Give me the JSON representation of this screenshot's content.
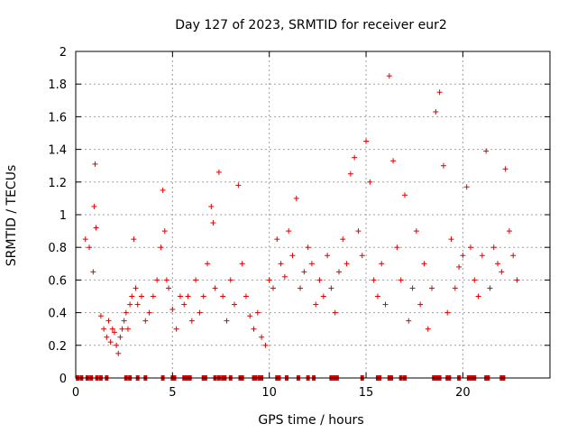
{
  "chart_data": {
    "type": "scatter",
    "title": "Day 127 of 2023, SRMTID for receiver eur2",
    "xlabel": "GPS time / hours",
    "ylabel": "SRMTID / TECUs",
    "xlim": [
      0,
      24.5
    ],
    "ylim": [
      0,
      2
    ],
    "grid": true,
    "x_ticks": [
      0,
      5,
      10,
      15,
      20
    ],
    "x_tick_labels": [
      "0",
      "5",
      "10",
      "15",
      "20"
    ],
    "y_ticks": [
      0,
      0.2,
      0.4,
      0.6,
      0.8,
      1,
      1.2,
      1.4,
      1.6,
      1.8,
      2
    ],
    "y_tick_labels": [
      "0",
      "0.2",
      "0.4",
      "0.6",
      "0.8",
      "1",
      "1.2",
      "1.4",
      "1.6",
      "1.8",
      "2"
    ],
    "marker": "+",
    "color": "#e00000",
    "series": [
      {
        "name": "SRMTID",
        "x": [
          0.5,
          0.7,
          0.9,
          0.95,
          1.0,
          1.05,
          1.3,
          1.45,
          1.6,
          1.7,
          1.8,
          1.9,
          2.0,
          2.1,
          2.2,
          2.3,
          2.4,
          2.5,
          2.6,
          2.7,
          2.8,
          2.9,
          3.0,
          3.1,
          3.2,
          3.4,
          3.6,
          3.8,
          4.0,
          4.2,
          4.4,
          4.5,
          4.6,
          4.7,
          4.8,
          5.0,
          5.2,
          5.4,
          5.6,
          5.8,
          6.0,
          6.2,
          6.4,
          6.6,
          6.8,
          7.0,
          7.1,
          7.2,
          7.4,
          7.6,
          7.8,
          8.0,
          8.2,
          8.4,
          8.6,
          8.8,
          9.0,
          9.2,
          9.4,
          9.6,
          9.8,
          10.0,
          10.2,
          10.4,
          10.6,
          10.8,
          11.0,
          11.2,
          11.4,
          11.6,
          11.8,
          12.0,
          12.2,
          12.4,
          12.6,
          12.8,
          13.0,
          13.2,
          13.4,
          13.6,
          13.8,
          14.0,
          14.2,
          14.4,
          14.6,
          14.8,
          15.0,
          15.2,
          15.4,
          15.6,
          15.8,
          16.0,
          16.2,
          16.4,
          16.6,
          16.8,
          17.0,
          17.2,
          17.4,
          17.6,
          17.8,
          18.0,
          18.2,
          18.4,
          18.6,
          18.8,
          19.0,
          19.2,
          19.4,
          19.6,
          19.8,
          20.0,
          20.2,
          20.4,
          20.6,
          20.8,
          21.0,
          21.2,
          21.4,
          21.6,
          21.8,
          22.0,
          22.2,
          22.4,
          22.6,
          22.8
        ],
        "y": [
          0.85,
          0.8,
          0.65,
          1.05,
          1.31,
          0.92,
          0.38,
          0.3,
          0.25,
          0.35,
          0.22,
          0.3,
          0.28,
          0.2,
          0.15,
          0.25,
          0.3,
          0.35,
          0.4,
          0.3,
          0.45,
          0.5,
          0.85,
          0.55,
          0.45,
          0.5,
          0.35,
          0.4,
          0.5,
          0.6,
          0.8,
          1.15,
          0.9,
          0.6,
          0.55,
          0.42,
          0.3,
          0.5,
          0.45,
          0.5,
          0.35,
          0.6,
          0.4,
          0.5,
          0.7,
          1.05,
          0.95,
          0.55,
          1.26,
          0.5,
          0.35,
          0.6,
          0.45,
          1.18,
          0.7,
          0.5,
          0.38,
          0.3,
          0.4,
          0.25,
          0.2,
          0.6,
          0.55,
          0.85,
          0.7,
          0.62,
          0.9,
          0.75,
          1.1,
          0.55,
          0.65,
          0.8,
          0.7,
          0.45,
          0.6,
          0.5,
          0.75,
          0.55,
          0.4,
          0.65,
          0.85,
          0.7,
          1.25,
          1.35,
          0.9,
          0.75,
          1.45,
          1.2,
          0.6,
          0.5,
          0.7,
          0.45,
          1.85,
          1.33,
          0.8,
          0.6,
          1.12,
          0.35,
          0.55,
          0.9,
          0.45,
          0.7,
          0.3,
          0.55,
          1.63,
          1.75,
          1.3,
          0.4,
          0.85,
          0.55,
          0.68,
          0.75,
          1.17,
          0.8,
          0.6,
          0.5,
          0.75,
          1.39,
          0.55,
          0.8,
          0.7,
          0.65,
          1.28,
          0.9,
          0.75,
          0.6
        ],
        "zero_points_x": [
          0.1,
          0.3,
          0.6,
          0.8,
          1.1,
          1.3,
          1.6,
          2.6,
          2.8,
          3.2,
          3.6,
          4.5,
          5.0,
          5.1,
          5.6,
          5.7,
          5.8,
          5.9,
          6.6,
          6.7,
          7.2,
          7.4,
          7.6,
          7.7,
          8.0,
          8.5,
          8.6,
          9.2,
          9.3,
          9.5,
          9.6,
          10.4,
          10.5,
          10.9,
          11.5,
          12.0,
          12.3,
          13.2,
          13.3,
          13.4,
          13.5,
          14.8,
          15.6,
          15.7,
          16.2,
          16.3,
          16.8,
          17.0,
          18.5,
          18.6,
          18.7,
          18.8,
          19.2,
          19.3,
          19.8,
          20.3,
          20.4,
          20.5,
          20.6,
          21.2,
          21.3,
          22.0,
          22.1
        ]
      }
    ]
  }
}
